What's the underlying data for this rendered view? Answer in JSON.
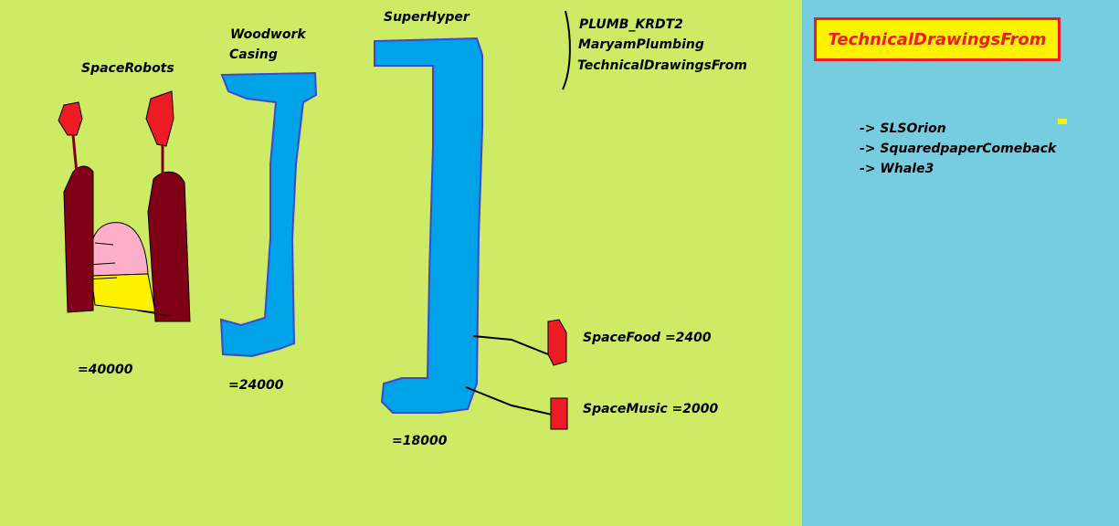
{
  "canvas_color": "#cdeb64",
  "sidebar_color": "#76cde0",
  "colors": {
    "blue": "#00a2e8",
    "red": "#ed1c24",
    "maroon": "#7f0016",
    "pink": "#ffaec9",
    "yellow": "#fff200"
  },
  "objects": {
    "space_robots": {
      "label": "SpaceRobots",
      "price": "=40000"
    },
    "woodwork_casing": {
      "label_line1": "Woodwork",
      "label_line2": "Casing",
      "price": "=24000"
    },
    "super_hyper": {
      "label": "SuperHyper",
      "price": "=18000"
    },
    "space_food": {
      "label": "SpaceFood  =2400"
    },
    "space_music": {
      "label": "SpaceMusic  =2000"
    }
  },
  "notes": [
    "PLUMB_KRDT2",
    "MaryamPlumbing",
    "TechnicalDrawingsFrom"
  ],
  "sidebar": {
    "title": "TechnicalDrawingsFrom",
    "links": [
      "-> SLSOrion",
      "-> SquaredpaperComeback",
      "-> Whale3"
    ]
  }
}
